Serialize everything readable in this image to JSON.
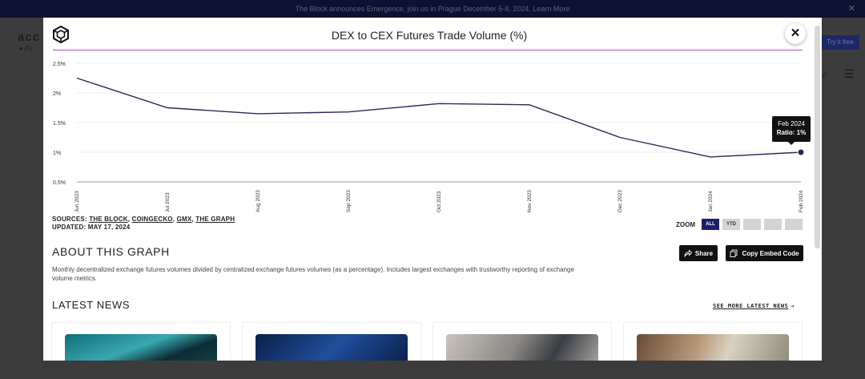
{
  "background": {
    "announcement": "The Block announces Emergence, join us in Prague December 5-8, 2024. Learn More",
    "logo_text": "acc",
    "sub_text": "● Pu",
    "try_button": "Try it free"
  },
  "modal": {
    "title": "DEX to CEX Futures Trade Volume (%)",
    "close_label": "✕",
    "tooltip": {
      "date": "Feb 2024",
      "ratio": "Ratio: 1%"
    },
    "sources_label": "SOURCES:",
    "sources": [
      "THE BLOCK",
      "COINGECKO",
      "GMX",
      "THE GRAPH"
    ],
    "updated": "UPDATED: MAY 17, 2024",
    "zoom": {
      "label": "ZOOM",
      "buttons": [
        "ALL",
        "YTD",
        "",
        "",
        ""
      ],
      "active": "ALL"
    },
    "about_title": "ABOUT THIS GRAPH",
    "about_desc": "Monthly decentralized exchange futures volumes divided by centralized exchange futures volumes (as a percentage). Includes largest exchanges with trustworthy reporting of exchange volume metrics.",
    "share_label": "Share",
    "embed_label": "Copy Embed Code",
    "news_title": "LATEST NEWS",
    "see_more": "SEE MORE LATEST NEWS",
    "colors": {
      "line": "#2b2856",
      "accent_rule": "#b24bd8",
      "zoom_active": "#1b1f6a"
    }
  },
  "chart_data": {
    "type": "line",
    "title": "DEX to CEX Futures Trade Volume (%)",
    "xlabel": "",
    "ylabel": "",
    "categories": [
      "Jun 2023",
      "Jul 2023",
      "Aug 2023",
      "Sep 2023",
      "Oct 2023",
      "Nov 2023",
      "Dec 2023",
      "Jan 2024",
      "Feb 2024"
    ],
    "series": [
      {
        "values": [
          2.25,
          1.75,
          1.65,
          1.68,
          1.82,
          1.8,
          1.25,
          0.92,
          1.0
        ]
      }
    ],
    "yticks": [
      "0.5%",
      "1%",
      "1.5%",
      "2%",
      "2.5%"
    ],
    "ytick_values": [
      0.5,
      1,
      1.5,
      2,
      2.5
    ],
    "ylim": [
      0.5,
      2.5
    ],
    "grid": true,
    "legend": "none"
  }
}
